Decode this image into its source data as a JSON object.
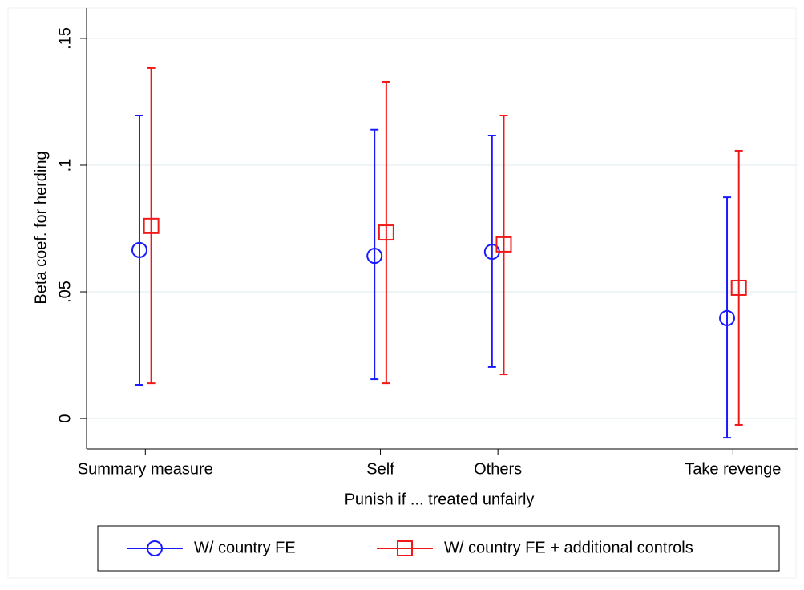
{
  "chart_data": {
    "type": "errorbar",
    "ylabel": "Beta coef. for herding",
    "xlabel": "Punish if ... treated unfairly",
    "xlim": [
      0.5,
      6.55
    ],
    "xticks": [
      {
        "value": 1,
        "label": "Summary measure"
      },
      {
        "value": 3,
        "label": "Self"
      },
      {
        "value": 4,
        "label": "Others"
      },
      {
        "value": 6,
        "label": "Take revenge"
      }
    ],
    "ylim": [
      -0.012,
      0.162
    ],
    "yticks": [
      0,
      {
        "value": 0.05,
        "label": ".05"
      },
      {
        "value": 0.1,
        "label": ".1"
      },
      {
        "value": 0.15,
        "label": ".15"
      }
    ],
    "grid": true,
    "legend": "bottom",
    "series": [
      {
        "name": "W/ country FE",
        "color": "#1a1aff",
        "marker": "circle",
        "x": [
          0.95,
          2.95,
          3.95,
          5.95
        ],
        "values": [
          0.0665,
          0.0642,
          0.0658,
          0.0396
        ],
        "lower": [
          0.0133,
          0.0155,
          0.0203,
          -0.0076
        ],
        "upper": [
          0.1196,
          0.114,
          0.1117,
          0.0873
        ]
      },
      {
        "name": "W/ country FE + additional controls",
        "color": "#f21818",
        "marker": "square",
        "x": [
          1.05,
          3.05,
          4.05,
          6.05
        ],
        "values": [
          0.076,
          0.0734,
          0.0687,
          0.0516
        ],
        "lower": [
          0.0139,
          0.0139,
          0.0174,
          -0.0025
        ],
        "upper": [
          0.1383,
          0.1329,
          0.1196,
          0.1057
        ]
      }
    ]
  }
}
